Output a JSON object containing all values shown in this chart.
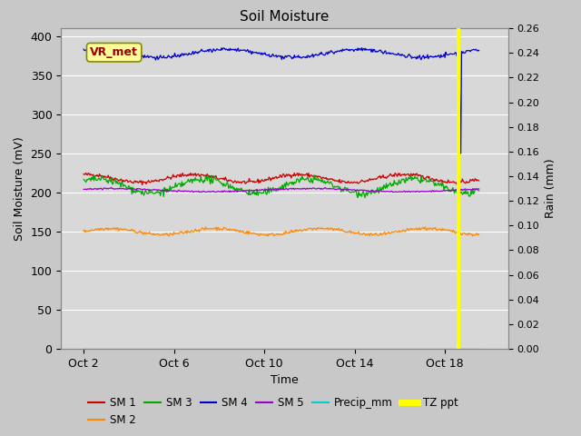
{
  "title": "Soil Moisture",
  "xlabel": "Time",
  "ylabel_left": "Soil Moisture (mV)",
  "ylabel_right": "Rain (mm)",
  "background_color": "#c8c8c8",
  "plot_bg_color": "#d8d8d8",
  "ylim_left": [
    0,
    410
  ],
  "ylim_right": [
    0,
    0.26
  ],
  "right_yticks": [
    0.0,
    0.02,
    0.04,
    0.06,
    0.08,
    0.1,
    0.12,
    0.14,
    0.16,
    0.18,
    0.2,
    0.22,
    0.24,
    0.26
  ],
  "left_yticks": [
    0,
    50,
    100,
    150,
    200,
    250,
    300,
    350,
    400
  ],
  "xtick_labels": [
    "Oct 2",
    "Oct 6",
    "Oct 10",
    "Oct 14",
    "Oct 18"
  ],
  "xtick_positions": [
    1,
    5,
    9,
    13,
    17
  ],
  "xlim": [
    0,
    19.8
  ],
  "sm1_base": 218,
  "sm1_amp": 5,
  "sm2_base": 150,
  "sm2_amp": 4,
  "sm3_base": 208,
  "sm3_amp": 9,
  "sm4_base": 378,
  "sm4_amp": 5,
  "sm5_base": 203,
  "sm5_amp": 2,
  "event_day": 17.6,
  "sm1_color": "#cc0000",
  "sm2_color": "#ff8800",
  "sm3_color": "#00aa00",
  "sm4_color": "#0000cc",
  "sm5_color": "#9900cc",
  "precip_color": "#00cccc",
  "tz_ppt_color": "#ffff00",
  "vr_met_box_color": "#ffff99",
  "vr_met_text_color": "#990000",
  "grid_color": "#ffffff",
  "annotation_label": "VR_met"
}
